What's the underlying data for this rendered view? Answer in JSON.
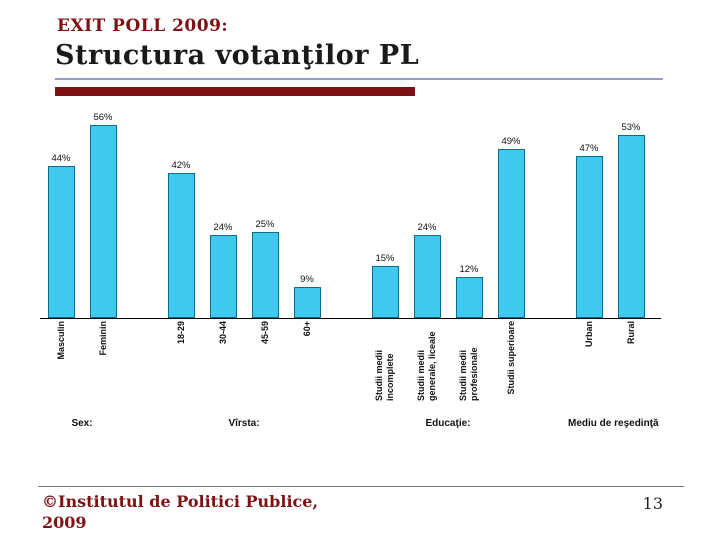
{
  "slide": {
    "kicker": "EXIT POLL 2009:",
    "title": "Structura votanţilor PL",
    "footer_credit": "©Institutul de Politici Publice, 2009",
    "page_number": "13"
  },
  "colors": {
    "accent_maroon": "#7E1113",
    "bar_fill": "#3FC9EF",
    "bar_border": "#0C6D88",
    "divider_purple": "#9A9ACE",
    "axis": "#000000"
  },
  "chart_data": {
    "type": "bar",
    "title": "Structura votanţilor PL",
    "value_suffix": "%",
    "ylim": [
      0,
      60
    ],
    "grid": false,
    "legend": false,
    "groups": [
      {
        "label": "Sex:",
        "categories": [
          "Masculin",
          "Feminin"
        ],
        "values": [
          44,
          56
        ]
      },
      {
        "label": "Vîrsta:",
        "categories": [
          "18-29",
          "30-44",
          "45-59",
          "60+"
        ],
        "values": [
          42,
          24,
          25,
          9
        ]
      },
      {
        "label": "Educaţie:",
        "categories": [
          "Studii medii incomplete",
          "Studii medii generale, liceale",
          "Studii medii profesionale",
          "Studii superioare"
        ],
        "values": [
          15,
          24,
          12,
          49
        ]
      },
      {
        "label": "Mediu de reşedinţă",
        "categories": [
          "Urban",
          "Rural"
        ],
        "values": [
          47,
          53
        ]
      }
    ]
  }
}
